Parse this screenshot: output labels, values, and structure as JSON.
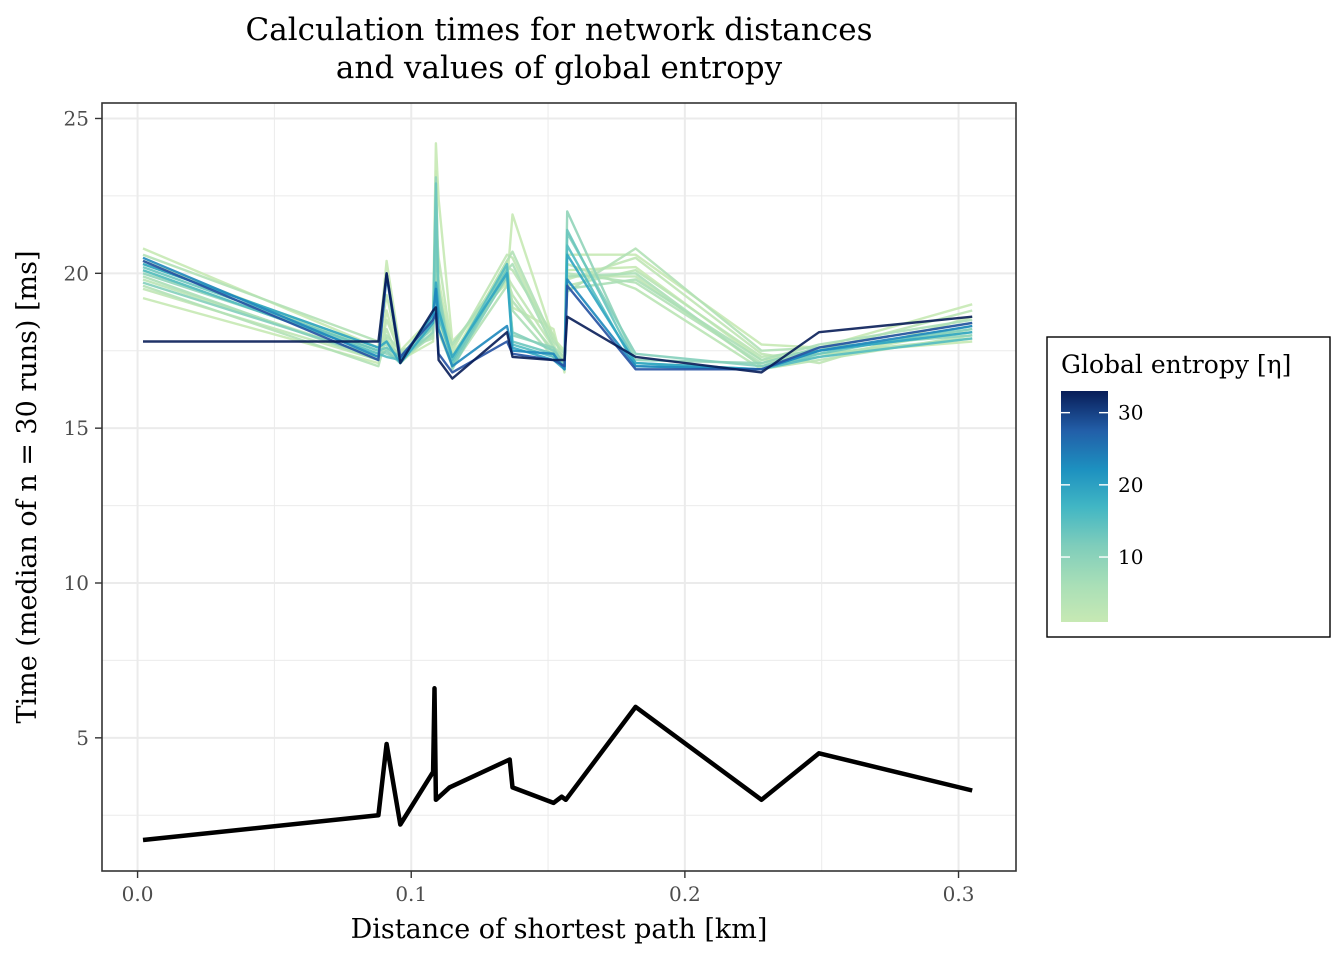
{
  "chart_data": {
    "type": "line",
    "title_line1": "Calculation times for network distances",
    "title_line2": "and values of global entropy",
    "xlabel": "Distance of shortest path [km]",
    "ylabel": "Time (median of n = 30 runs) [ms]",
    "xlim": [
      -0.013,
      0.321
    ],
    "ylim": [
      0.7,
      25.5
    ],
    "x_ticks": [
      0.0,
      0.1,
      0.2,
      0.3
    ],
    "x_tick_labels": [
      "0.0",
      "0.1",
      "0.2",
      "0.3"
    ],
    "y_ticks": [
      5,
      10,
      15,
      20,
      25
    ],
    "y_tick_labels": [
      "5",
      "10",
      "15",
      "20",
      "25"
    ],
    "grid": true,
    "x": [
      0.002,
      0.088,
      0.091,
      0.096,
      0.108,
      0.109,
      0.11,
      0.115,
      0.135,
      0.137,
      0.152,
      0.156,
      0.157,
      0.182,
      0.228,
      0.249,
      0.305
    ],
    "series": [
      {
        "entropy": 1,
        "values": [
          20.8,
          17.6,
          20.4,
          17.5,
          18.6,
          24.2,
          22.4,
          17.8,
          19.7,
          21.9,
          17.9,
          17.5,
          20.6,
          20.6,
          17.7,
          17.6,
          19.0
        ]
      },
      {
        "entropy": 1,
        "values": [
          19.2,
          17.1,
          18.8,
          17.2,
          17.8,
          23.3,
          19.8,
          17.3,
          20.4,
          18.9,
          18.2,
          16.8,
          20.1,
          20.2,
          17.2,
          17.4,
          17.8
        ]
      },
      {
        "entropy": 1.5,
        "values": [
          20.4,
          17.5,
          19.3,
          17.3,
          18.3,
          21.8,
          20.5,
          17.5,
          20.6,
          20.5,
          17.7,
          17.0,
          19.8,
          20.5,
          17.4,
          17.1,
          18.6
        ]
      },
      {
        "entropy": 1.5,
        "values": [
          19.5,
          17.2,
          18.5,
          17.4,
          18.0,
          22.9,
          18.8,
          17.1,
          19.9,
          19.6,
          17.6,
          17.2,
          19.9,
          19.9,
          17.0,
          17.3,
          18.2
        ]
      },
      {
        "entropy": 2,
        "values": [
          20.1,
          17.4,
          17.9,
          17.2,
          18.4,
          21.3,
          19.3,
          17.6,
          20.2,
          20.1,
          18.0,
          17.1,
          19.6,
          20.1,
          17.3,
          17.5,
          18.8
        ]
      },
      {
        "entropy": 2,
        "values": [
          19.8,
          17.3,
          18.2,
          17.1,
          18.1,
          20.7,
          18.4,
          17.4,
          19.8,
          19.3,
          17.4,
          16.9,
          20.3,
          19.5,
          16.9,
          17.2,
          18.0
        ]
      },
      {
        "entropy": 2.5,
        "values": [
          20.6,
          17.8,
          17.8,
          17.3,
          18.6,
          22.4,
          19.0,
          17.2,
          20.4,
          20.7,
          17.8,
          17.4,
          19.4,
          20.8,
          17.5,
          17.6,
          18.4
        ]
      },
      {
        "entropy": 2.5,
        "values": [
          19.6,
          17.0,
          18.0,
          17.5,
          17.9,
          21.6,
          18.1,
          17.0,
          19.6,
          19.1,
          17.5,
          17.0,
          20.0,
          19.7,
          17.1,
          17.4,
          17.9
        ]
      },
      {
        "entropy": 3,
        "values": [
          20.3,
          17.6,
          17.7,
          17.4,
          18.2,
          20.9,
          18.7,
          17.7,
          20.1,
          20.3,
          17.6,
          17.3,
          19.5,
          19.8,
          17.2,
          17.7,
          18.5
        ]
      },
      {
        "entropy": 3,
        "values": [
          19.9,
          17.2,
          17.6,
          17.2,
          18.0,
          19.8,
          18.2,
          17.3,
          20.0,
          18.8,
          17.3,
          17.2,
          19.9,
          20.0,
          17.0,
          17.5,
          18.1
        ]
      },
      {
        "entropy": 5,
        "values": [
          20.0,
          17.5,
          17.4,
          17.2,
          18.1,
          23.1,
          19.5,
          16.9,
          20.2,
          18.0,
          17.6,
          17.0,
          22.0,
          17.2,
          17.1,
          17.6,
          18.0
        ]
      },
      {
        "entropy": 6,
        "values": [
          19.7,
          17.3,
          17.5,
          17.1,
          18.3,
          21.0,
          19.2,
          17.0,
          19.9,
          18.1,
          17.5,
          17.1,
          21.3,
          17.4,
          17.0,
          17.5,
          18.2
        ]
      },
      {
        "entropy": 8,
        "values": [
          20.2,
          17.5,
          17.6,
          17.3,
          18.5,
          22.9,
          18.9,
          17.1,
          20.1,
          17.8,
          17.4,
          16.9,
          21.4,
          17.1,
          16.9,
          17.4,
          18.3
        ]
      },
      {
        "entropy": 10,
        "values": [
          20.1,
          17.4,
          17.3,
          17.2,
          18.6,
          19.4,
          18.6,
          17.2,
          20.3,
          17.7,
          17.3,
          17.0,
          20.9,
          17.0,
          16.9,
          17.3,
          17.9
        ]
      },
      {
        "entropy": 14,
        "values": [
          20.3,
          17.6,
          17.8,
          17.1,
          18.4,
          19.7,
          18.8,
          17.3,
          20.0,
          17.6,
          17.2,
          16.9,
          20.6,
          17.1,
          16.9,
          17.5,
          18.1
        ]
      },
      {
        "entropy": 18,
        "values": [
          20.5,
          17.3,
          19.9,
          17.2,
          18.7,
          19.5,
          18.2,
          17.0,
          18.3,
          17.5,
          17.4,
          16.9,
          19.8,
          17.0,
          16.9,
          17.5,
          18.3
        ]
      },
      {
        "entropy": 24,
        "values": [
          20.4,
          17.2,
          20.0,
          17.3,
          18.5,
          18.7,
          17.4,
          16.8,
          17.8,
          17.4,
          17.2,
          17.0,
          19.6,
          16.9,
          16.9,
          17.6,
          18.4
        ]
      },
      {
        "entropy": 33,
        "values": [
          17.8,
          17.8,
          20.0,
          17.1,
          18.8,
          18.9,
          17.2,
          16.6,
          18.1,
          17.3,
          17.2,
          17.2,
          18.6,
          17.3,
          16.8,
          18.1,
          18.6
        ]
      }
    ],
    "baseline": {
      "color": "#000000",
      "x": [
        0.002,
        0.088,
        0.091,
        0.096,
        0.108,
        0.1085,
        0.109,
        0.114,
        0.136,
        0.137,
        0.152,
        0.155,
        0.1565,
        0.182,
        0.228,
        0.249,
        0.305
      ],
      "values": [
        1.7,
        2.5,
        4.8,
        2.2,
        3.9,
        6.6,
        3.0,
        3.4,
        4.3,
        3.4,
        2.9,
        3.1,
        3.0,
        6.0,
        3.0,
        4.5,
        3.3
      ]
    },
    "legend": {
      "title": "Global entropy [η]",
      "placement": "right",
      "range": [
        1,
        33
      ],
      "ticks": [
        10,
        20,
        30
      ],
      "tick_labels": [
        "10",
        "20",
        "30"
      ],
      "colors": [
        "#c7e9b4",
        "#7fcdbb",
        "#41b6c4",
        "#1d91c0",
        "#225ea8",
        "#253494",
        "#081d58"
      ]
    }
  }
}
